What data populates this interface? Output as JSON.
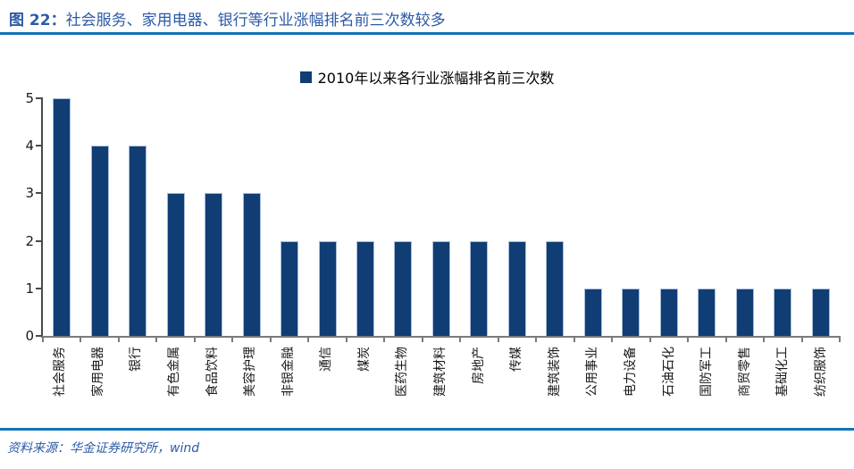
{
  "header": {
    "title_prefix": "图 22：",
    "title_text": "社会服务、家用电器、银行等行业涨幅排名前三次数较多"
  },
  "chart_data": {
    "type": "bar",
    "legend_label": "2010年以来各行业涨幅排名前三次数",
    "categories": [
      "社会服务",
      "家用电器",
      "银行",
      "有色金属",
      "食品饮料",
      "美容护理",
      "非银金融",
      "通信",
      "煤炭",
      "医药生物",
      "建筑材料",
      "房地产",
      "传媒",
      "建筑装饰",
      "公用事业",
      "电力设备",
      "石油石化",
      "国防军工",
      "商贸零售",
      "基础化工",
      "纺织服饰"
    ],
    "values": [
      5,
      4,
      4,
      3,
      3,
      3,
      2,
      2,
      2,
      2,
      2,
      2,
      2,
      2,
      1,
      1,
      1,
      1,
      1,
      1,
      1
    ],
    "title": "",
    "xlabel": "",
    "ylabel": "",
    "ylim": [
      0,
      5
    ],
    "yticks": [
      0,
      1,
      2,
      3,
      4,
      5
    ],
    "grid": false,
    "legend_position": "top-center",
    "bar_color": "#103D74",
    "bar_edge_color": "#A9BDD8",
    "y_axis_color": "#4A4A4A",
    "x_axis_color": "#7A7A7A"
  },
  "footer": {
    "source": "资料来源：华金证券研究所，wind"
  },
  "colors": {
    "rule_blue": "#1273B7",
    "title_blue": "#2C5AA6"
  }
}
